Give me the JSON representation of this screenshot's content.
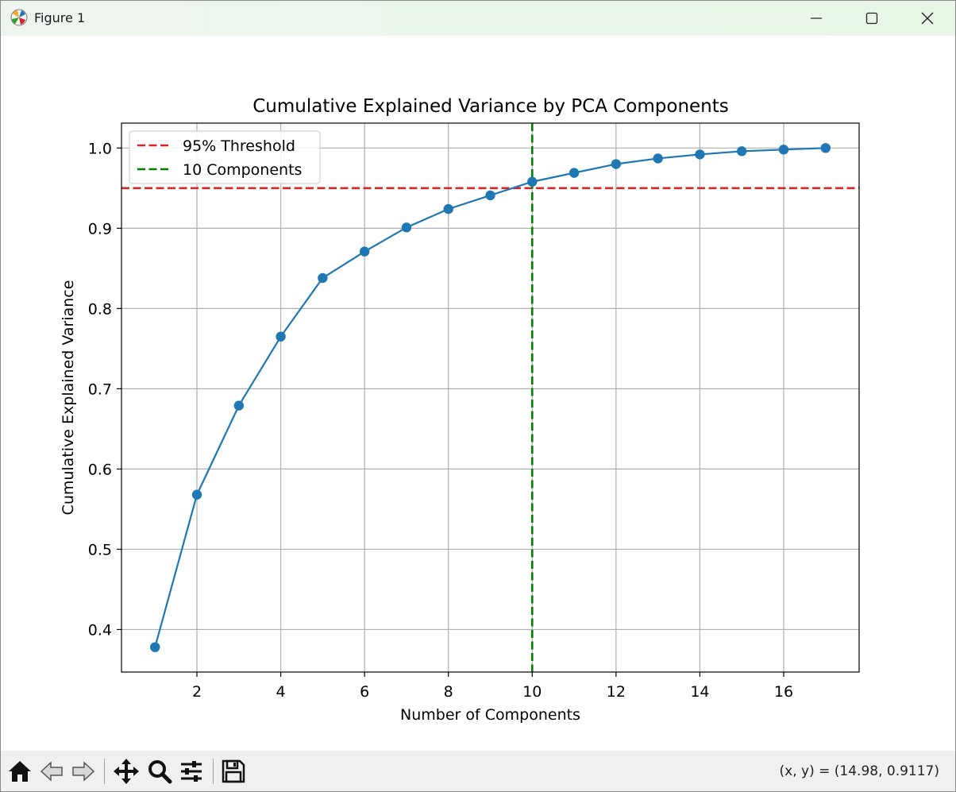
{
  "window": {
    "title": "Figure 1",
    "icons": {
      "app": "matplotlib-icon",
      "minimize": "minimize-icon",
      "maximize": "maximize-icon",
      "close": "close-icon"
    }
  },
  "toolbar": {
    "buttons": [
      {
        "name": "home-icon"
      },
      {
        "name": "back-arrow-icon"
      },
      {
        "name": "forward-arrow-icon"
      },
      {
        "name": "pan-icon"
      },
      {
        "name": "zoom-icon"
      },
      {
        "name": "configure-subplots-icon"
      },
      {
        "name": "save-icon"
      }
    ],
    "coords_text": "(x, y) = (14.98, 0.9117)"
  },
  "colors": {
    "series": "#1f77b4",
    "threshold": "#d62728",
    "components": "#008000",
    "grid": "#b0b0b0"
  },
  "chart_data": {
    "type": "line",
    "title": "Cumulative Explained Variance by PCA Components",
    "xlabel": "Number of Components",
    "ylabel": "Cumulative Explained Variance",
    "x": [
      1,
      2,
      3,
      4,
      5,
      6,
      7,
      8,
      9,
      10,
      11,
      12,
      13,
      14,
      15,
      16,
      17
    ],
    "series": [
      {
        "name": "Cumulative Explained Variance",
        "values": [
          0.378,
          0.568,
          0.679,
          0.765,
          0.838,
          0.871,
          0.901,
          0.924,
          0.941,
          0.958,
          0.969,
          0.98,
          0.987,
          0.992,
          0.996,
          0.998,
          1.0
        ]
      }
    ],
    "hlines": [
      {
        "y": 0.95,
        "label": "95% Threshold",
        "color": "#d62728",
        "style": "dashed"
      }
    ],
    "vlines": [
      {
        "x": 10,
        "label": "10 Components",
        "color": "#008000",
        "style": "dashed"
      }
    ],
    "legend": [
      "95% Threshold",
      "10 Components"
    ],
    "legend_position": "upper-left",
    "xlim": [
      0.2,
      17.8
    ],
    "ylim": [
      0.347,
      1.031
    ],
    "xticks": [
      2,
      4,
      6,
      8,
      10,
      12,
      14,
      16
    ],
    "yticks": [
      0.4,
      0.5,
      0.6,
      0.7,
      0.8,
      0.9,
      1.0
    ],
    "ytick_labels": [
      "0.4",
      "0.5",
      "0.6",
      "0.7",
      "0.8",
      "0.9",
      "1.0"
    ],
    "grid": true
  }
}
